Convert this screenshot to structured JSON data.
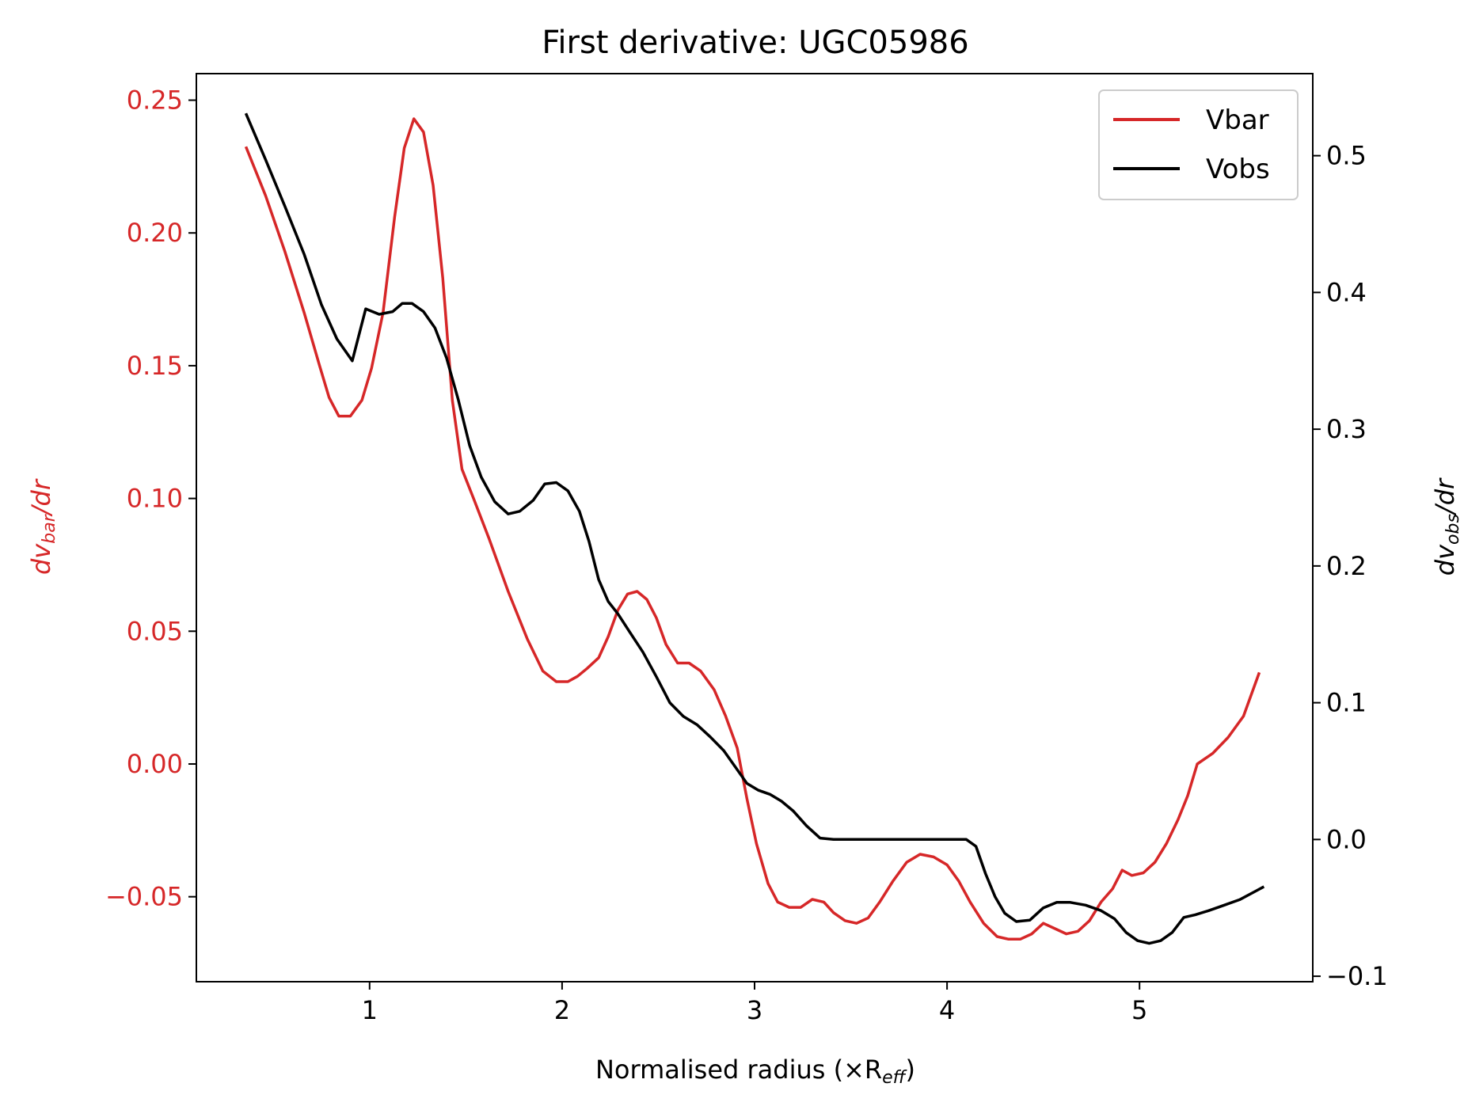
{
  "chart_data": {
    "type": "line",
    "title": "First derivative: UGC05986",
    "xlabel": "Normalised radius (×R",
    "xlabel_sub": "eff",
    "xlabel_end": ")",
    "ylabel_left_pre": "dv",
    "ylabel_left_sub": "bar",
    "ylabel_left_post": "/dr",
    "ylabel_right_pre": "dv",
    "ylabel_right_sub": "obs",
    "ylabel_right_post": "/dr",
    "xlim": [
      0.1,
      5.9
    ],
    "ylim_left": [
      -0.082,
      0.26
    ],
    "ylim_right": [
      -0.104,
      0.56
    ],
    "xticks": [
      1,
      2,
      3,
      4,
      5
    ],
    "xtick_labels": [
      "1",
      "2",
      "3",
      "4",
      "5"
    ],
    "yticks_left": [
      -0.05,
      0.0,
      0.05,
      0.1,
      0.15,
      0.2,
      0.25
    ],
    "ytick_labels_left": [
      "−0.05",
      "0.00",
      "0.05",
      "0.10",
      "0.15",
      "0.20",
      "0.25"
    ],
    "yticks_right": [
      -0.1,
      0.0,
      0.1,
      0.2,
      0.3,
      0.4,
      0.5
    ],
    "ytick_labels_right": [
      "−0.1",
      "0.0",
      "0.1",
      "0.2",
      "0.3",
      "0.4",
      "0.5"
    ],
    "legend_position": "upper right",
    "series": [
      {
        "name": "Vbar",
        "axis": "left",
        "color": "#d62728",
        "x": [
          0.36,
          0.46,
          0.56,
          0.66,
          0.74,
          0.79,
          0.84,
          0.9,
          0.96,
          1.01,
          1.07,
          1.13,
          1.18,
          1.23,
          1.28,
          1.33,
          1.38,
          1.43,
          1.48,
          1.54,
          1.62,
          1.72,
          1.82,
          1.9,
          1.97,
          2.03,
          2.08,
          2.13,
          2.19,
          2.24,
          2.29,
          2.34,
          2.39,
          2.44,
          2.49,
          2.54,
          2.6,
          2.66,
          2.72,
          2.79,
          2.85,
          2.91,
          2.96,
          3.01,
          3.07,
          3.12,
          3.18,
          3.24,
          3.3,
          3.36,
          3.41,
          3.47,
          3.53,
          3.59,
          3.65,
          3.72,
          3.79,
          3.86,
          3.93,
          4.0,
          4.06,
          4.12,
          4.19,
          4.26,
          4.32,
          4.38,
          4.44,
          4.5,
          4.56,
          4.62,
          4.68,
          4.74,
          4.8,
          4.86,
          4.91,
          4.96,
          5.02,
          5.08,
          5.14,
          5.2,
          5.25,
          5.3,
          5.38,
          5.46,
          5.54,
          5.62
        ],
        "values": [
          0.232,
          0.214,
          0.193,
          0.17,
          0.15,
          0.138,
          0.131,
          0.131,
          0.137,
          0.149,
          0.17,
          0.206,
          0.232,
          0.243,
          0.238,
          0.218,
          0.183,
          0.137,
          0.111,
          0.1,
          0.085,
          0.065,
          0.047,
          0.035,
          0.031,
          0.031,
          0.033,
          0.036,
          0.04,
          0.048,
          0.058,
          0.064,
          0.065,
          0.062,
          0.055,
          0.045,
          0.038,
          0.038,
          0.035,
          0.028,
          0.018,
          0.006,
          -0.013,
          -0.03,
          -0.045,
          -0.052,
          -0.054,
          -0.054,
          -0.051,
          -0.052,
          -0.056,
          -0.059,
          -0.06,
          -0.058,
          -0.052,
          -0.044,
          -0.037,
          -0.034,
          -0.035,
          -0.038,
          -0.044,
          -0.052,
          -0.06,
          -0.065,
          -0.066,
          -0.066,
          -0.064,
          -0.06,
          -0.062,
          -0.064,
          -0.063,
          -0.059,
          -0.052,
          -0.047,
          -0.04,
          -0.042,
          -0.041,
          -0.037,
          -0.03,
          -0.021,
          -0.012,
          0.0,
          0.004,
          0.01,
          0.018,
          0.034
        ]
      },
      {
        "name": "Vobs",
        "axis": "right",
        "color": "#000000",
        "x": [
          0.36,
          0.46,
          0.56,
          0.66,
          0.75,
          0.83,
          0.91,
          0.98,
          1.05,
          1.12,
          1.17,
          1.22,
          1.28,
          1.34,
          1.4,
          1.46,
          1.52,
          1.58,
          1.65,
          1.72,
          1.78,
          1.85,
          1.91,
          1.97,
          2.03,
          2.09,
          2.14,
          2.19,
          2.24,
          2.29,
          2.35,
          2.42,
          2.49,
          2.56,
          2.63,
          2.7,
          2.77,
          2.84,
          2.9,
          2.96,
          3.02,
          3.08,
          3.14,
          3.2,
          3.27,
          3.34,
          3.41,
          3.5,
          3.6,
          3.7,
          3.8,
          3.9,
          4.0,
          4.1,
          4.15,
          4.2,
          4.25,
          4.3,
          4.36,
          4.43,
          4.5,
          4.57,
          4.64,
          4.72,
          4.8,
          4.87,
          4.93,
          4.99,
          5.05,
          5.11,
          5.17,
          5.23,
          5.29,
          5.36,
          5.44,
          5.52,
          5.6,
          5.64
        ],
        "values": [
          0.53,
          0.497,
          0.463,
          0.428,
          0.391,
          0.366,
          0.35,
          0.388,
          0.384,
          0.386,
          0.392,
          0.392,
          0.386,
          0.374,
          0.352,
          0.322,
          0.288,
          0.265,
          0.247,
          0.238,
          0.24,
          0.248,
          0.26,
          0.261,
          0.255,
          0.24,
          0.218,
          0.19,
          0.174,
          0.165,
          0.152,
          0.137,
          0.119,
          0.1,
          0.09,
          0.084,
          0.075,
          0.065,
          0.053,
          0.041,
          0.036,
          0.033,
          0.028,
          0.021,
          0.01,
          0.001,
          0.0,
          0.0,
          0.0,
          0.0,
          0.0,
          0.0,
          0.0,
          0.0,
          -0.005,
          -0.025,
          -0.042,
          -0.054,
          -0.06,
          -0.059,
          -0.05,
          -0.046,
          -0.046,
          -0.048,
          -0.052,
          -0.058,
          -0.068,
          -0.074,
          -0.076,
          -0.074,
          -0.068,
          -0.057,
          -0.055,
          -0.052,
          -0.048,
          -0.044,
          -0.038,
          -0.035
        ]
      }
    ]
  }
}
